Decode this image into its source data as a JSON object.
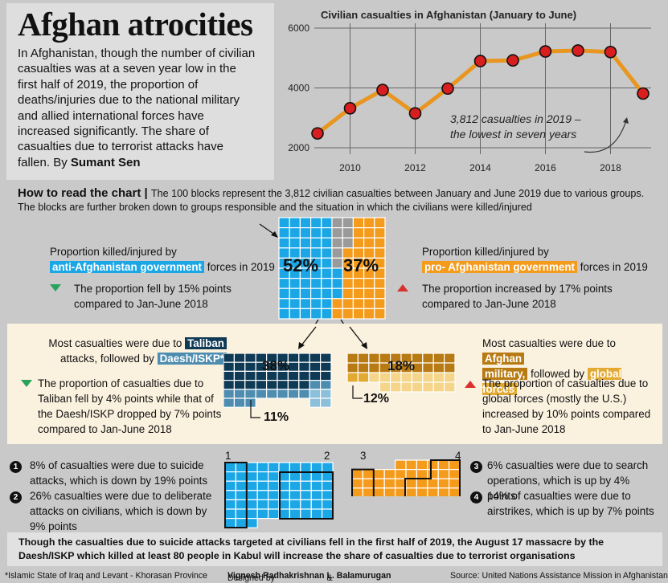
{
  "header": {
    "title": "Afghan atrocities",
    "intro": "In Afghanistan, though the number of civilian casualties was at a seven year low in the first half of 2019, the proportion of deaths/injuries due to the national military and allied international forces have increased significantly. The share of casualties due to terrorist attacks have fallen. By",
    "byline": "Sumant Sen"
  },
  "chart_data": {
    "type": "line",
    "title": "Civilian casualties in Afghanistan (January to June)",
    "x": [
      2009,
      2010,
      2011,
      2012,
      2013,
      2014,
      2015,
      2016,
      2017,
      2018,
      2019
    ],
    "y": [
      2480,
      3320,
      3930,
      3150,
      3980,
      4900,
      4920,
      5220,
      5250,
      5200,
      3812
    ],
    "xticks": [
      "2010",
      "2012",
      "2014",
      "2016",
      "2018"
    ],
    "yticks": [
      "2000",
      "4000",
      "6000"
    ],
    "ylim": [
      2000,
      6000
    ],
    "annotation": "3,812 casualties in 2019 – the lowest in seven years",
    "line_color": "#e8961f",
    "marker_color": "#d81e1e"
  },
  "howto": {
    "heading": "How to read the chart",
    "text": "The 100 blocks represent the 3,812 civilian casualties between January and June 2019 due to various groups. The blocks are further broken down to groups responsible and the situation in which the civilians were killed/injured"
  },
  "anti_govt": {
    "label_pre": "Proportion killed/injured by",
    "tag": "anti-Afghanistan government",
    "label_post": "forces in 2019",
    "change": "The proportion fell by 15% points compared to Jan-June 2018",
    "percent": "52%"
  },
  "pro_govt": {
    "label_pre": "Proportion killed/injured by",
    "tag": "pro- Afghanistan government",
    "label_post": "forces in 2019",
    "change": "The proportion increased by 17% points compared to Jan-June 2018",
    "percent": "37%"
  },
  "taliban": {
    "line1_pre": "Most casualties were due to",
    "tag1": "Taliban",
    "line2_pre": "attacks, followed by",
    "tag2": "Daesh/ISKP*",
    "change": "The proportion of casualties due to Taliban fell by 4% points while that of the Daesh/ISKP dropped by 7% points compared to Jan-June 2018",
    "pct_taliban": "38%",
    "pct_daesh": "11%"
  },
  "afghan_military": {
    "line1_pre": "Most casualties were due to",
    "tag1": "Afghan",
    "tag1b": "military,",
    "line2_mid": "followed by",
    "tag2": "global forces",
    "change": "The proportion of casualties due to global forces (mostly the U.S.) increased by 10% points compared to Jan-June 2018",
    "pct_military": "18%",
    "pct_global": "12%"
  },
  "notes_left": [
    {
      "num": "1",
      "text": "8% of casualties were due to suicide attacks, which is down by 19% points"
    },
    {
      "num": "2",
      "text": "26% casualties were due to deliberate attacks on civilians, which is down by  9% points"
    }
  ],
  "notes_right": [
    {
      "num": "3",
      "text": "6% casualties were due to search operations, which is up by 4% points"
    },
    {
      "num": "4",
      "text": "14% of casualties were due to airstrikes, which is up by 7% points"
    }
  ],
  "grid_labels": [
    "1",
    "2",
    "3",
    "4"
  ],
  "bottom_note": "Though the casualties due to suicide attacks targeted at civilians fell in the first half of 2019, the August 17 massacre by the Daesh/ISKP which killed at least 80 people in Kabul will increase the share of casualties due to terrorist organisations",
  "footer": {
    "footnote": "*Islamic State of Iraq and Levant - Khorasan Province",
    "designed_pre": "Designed by",
    "designers": "Vignesh Radhakrishnan",
    "designers_and": "&",
    "designers2": "L. Balamurugan",
    "source": "Source: United Nations Assistance Mission in Afghanistan"
  },
  "colors": {
    "blue": "#1ba7e6",
    "orange": "#f59b1c",
    "gray_block": "#9a9a9a",
    "navy": "#0f3a55",
    "steel": "#4e8db0",
    "light_steel": "#8cc0da",
    "brown": "#b87a12",
    "gold": "#e3aa33",
    "light_gold": "#f4d58a"
  }
}
